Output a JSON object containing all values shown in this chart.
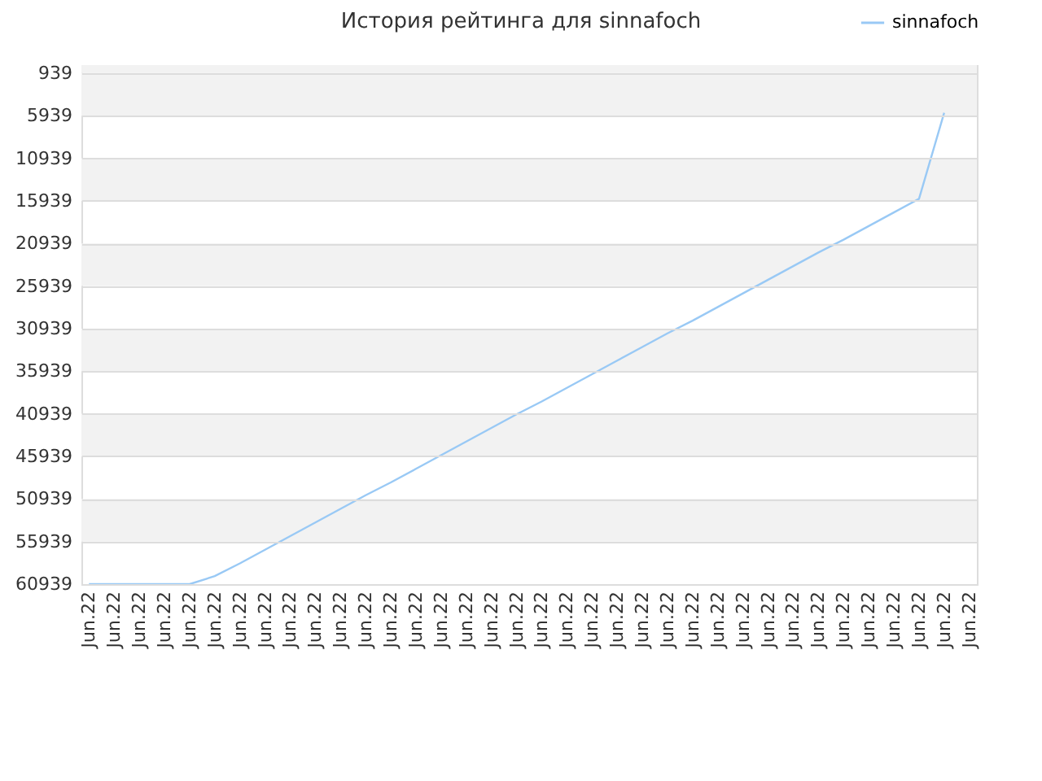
{
  "chart_data": {
    "type": "line",
    "title": "История рейтинга для sinnafoch",
    "categories": [
      "Jun.22",
      "Jun.22",
      "Jun.22",
      "Jun.22",
      "Jun.22",
      "Jun.22",
      "Jun.22",
      "Jun.22",
      "Jun.22",
      "Jun.22",
      "Jun.22",
      "Jun.22",
      "Jun.22",
      "Jun.22",
      "Jun.22",
      "Jun.22",
      "Jun.22",
      "Jun.22",
      "Jun.22",
      "Jun.22",
      "Jun.22",
      "Jun.22",
      "Jun.22",
      "Jun.22",
      "Jun.22",
      "Jun.22",
      "Jun.22",
      "Jun.22",
      "Jun.22",
      "Jun.22",
      "Jun.22",
      "Jun.22",
      "Jun.22",
      "Jun.22",
      "Jun.22",
      "Jun.22"
    ],
    "series": [
      {
        "name": "sinnafoch",
        "color": "#99c9f5",
        "values": [
          60939,
          60939,
          60939,
          60939,
          60939,
          60000,
          58500,
          56900,
          55300,
          53700,
          52100,
          50500,
          49000,
          47400,
          45800,
          44200,
          42600,
          41000,
          39500,
          37900,
          36300,
          34700,
          33100,
          31500,
          30000,
          28400,
          26800,
          25200,
          23600,
          22000,
          20500,
          18900,
          17300,
          15700,
          5600,
          null
        ]
      }
    ],
    "ylim": [
      60939,
      0
    ],
    "yticks": [
      939,
      5939,
      10939,
      15939,
      20939,
      25939,
      30939,
      35939,
      40939,
      45939,
      50939,
      55939,
      60939
    ],
    "bands": [
      {
        "axis": "y",
        "from": 0,
        "to": 939,
        "color": "#f2f2f2"
      },
      {
        "axis": "y",
        "from": 939,
        "to": 5939,
        "color": "#f2f2f2"
      },
      {
        "axis": "y",
        "from": 10939,
        "to": 15939,
        "color": "#f2f2f2"
      },
      {
        "axis": "y",
        "from": 20939,
        "to": 25939,
        "color": "#f2f2f2"
      },
      {
        "axis": "y",
        "from": 30939,
        "to": 35939,
        "color": "#f2f2f2"
      },
      {
        "axis": "y",
        "from": 40939,
        "to": 45939,
        "color": "#f2f2f2"
      },
      {
        "axis": "y",
        "from": 50939,
        "to": 55939,
        "color": "#f2f2f2"
      }
    ],
    "grid": "y",
    "legend": "top right",
    "marker": "none"
  }
}
